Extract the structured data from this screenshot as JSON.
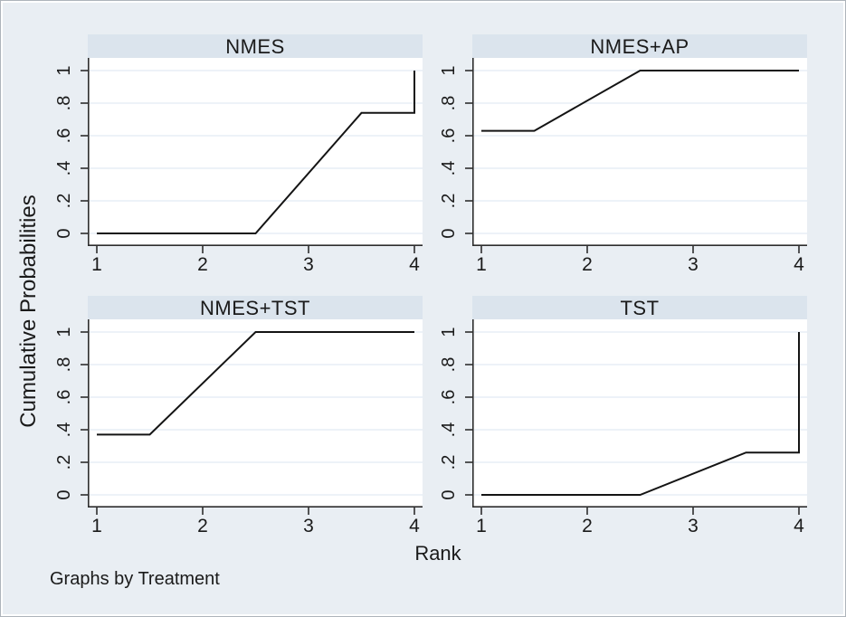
{
  "figure": {
    "ylabel": "Cumulative Probabilities",
    "xlabel": "Rank",
    "caption": "Graphs by Treatment"
  },
  "colors": {
    "canvas_bg": "#e9eef3",
    "strip_bg": "#dbe4ed",
    "plot_bg": "#ffffff",
    "gridline": "#e2ebf3",
    "axis": "#2e2e2e",
    "data_line": "#141414",
    "text": "#1a1a1a",
    "outer_border": "#aeb4ba"
  },
  "chart_data": {
    "type": "line",
    "title": "",
    "facet_by": "Treatment",
    "xlabel": "Rank",
    "ylabel": "Cumulative Probabilities",
    "note": "Graphs by Treatment",
    "xlim": [
      1,
      4
    ],
    "ylim": [
      0,
      1
    ],
    "x_ticks": [
      1,
      2,
      3,
      4
    ],
    "y_ticks": [
      {
        "label": "0",
        "value": 0
      },
      {
        "label": ".2",
        "value": 0.2
      },
      {
        "label": ".4",
        "value": 0.4
      },
      {
        "label": ".6",
        "value": 0.6
      },
      {
        "label": ".8",
        "value": 0.8
      },
      {
        "label": "1",
        "value": 1
      }
    ],
    "grid": true,
    "legend": "none",
    "panels": [
      {
        "title": "NMES",
        "x": [
          1,
          2.5,
          3.5,
          4,
          4
        ],
        "y": [
          0,
          0,
          0.74,
          0.74,
          1
        ]
      },
      {
        "title": "NMES+AP",
        "x": [
          1,
          1.5,
          2.5,
          4
        ],
        "y": [
          0.63,
          0.63,
          1,
          1
        ]
      },
      {
        "title": "NMES+TST",
        "x": [
          1,
          1.5,
          2.5,
          4
        ],
        "y": [
          0.37,
          0.37,
          1,
          1
        ]
      },
      {
        "title": "TST",
        "x": [
          1,
          2.5,
          3.5,
          4,
          4
        ],
        "y": [
          0,
          0,
          0.26,
          0.26,
          1
        ]
      }
    ]
  }
}
